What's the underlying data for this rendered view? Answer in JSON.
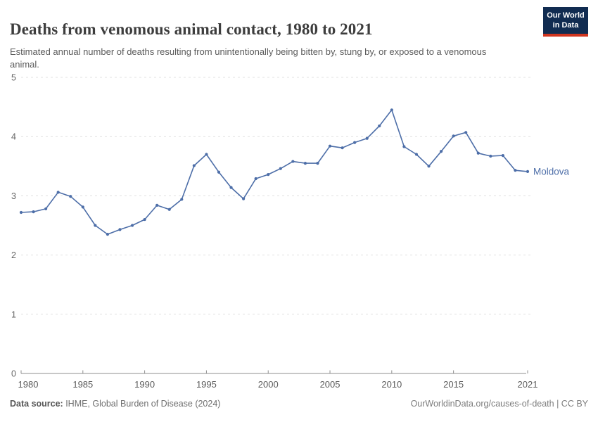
{
  "header": {
    "title": "Deaths from venomous animal contact, 1980 to 2021",
    "subtitle": "Estimated annual number of deaths resulting from unintentionally being bitten by, stung by, or exposed to a venomous animal.",
    "logo": {
      "line1": "Our World",
      "line2": "in Data"
    }
  },
  "footer": {
    "source_label": "Data source:",
    "source_value": " IHME, Global Burden of Disease (2024)",
    "credit": "OurWorldinData.org/causes-of-death | CC BY"
  },
  "colors": {
    "line": "#4d6ea8",
    "grid": "#e0e0e0",
    "axis": "#8f8f8f",
    "tick_label": "#666666",
    "logo_bg": "#112c51",
    "logo_accent": "#d0351f"
  },
  "chart_data": {
    "type": "line",
    "title": "Deaths from venomous animal contact, 1980 to 2021",
    "xlabel": "",
    "ylabel": "",
    "ylim": [
      0,
      5
    ],
    "yticks": [
      0,
      1,
      2,
      3,
      4,
      5
    ],
    "xticks": [
      1980,
      1985,
      1990,
      1995,
      2000,
      2005,
      2010,
      2015,
      2021
    ],
    "grid": "horizontal-dashed",
    "legend_position": "end-of-line",
    "x": [
      1980,
      1981,
      1982,
      1983,
      1984,
      1985,
      1986,
      1987,
      1988,
      1989,
      1990,
      1991,
      1992,
      1993,
      1994,
      1995,
      1996,
      1997,
      1998,
      1999,
      2000,
      2001,
      2002,
      2003,
      2004,
      2005,
      2006,
      2007,
      2008,
      2009,
      2010,
      2011,
      2012,
      2013,
      2014,
      2015,
      2016,
      2017,
      2018,
      2019,
      2020,
      2021
    ],
    "series": [
      {
        "name": "Moldova",
        "color": "#4d6ea8",
        "values": [
          2.72,
          2.73,
          2.78,
          3.06,
          2.99,
          2.81,
          2.5,
          2.35,
          2.43,
          2.5,
          2.6,
          2.84,
          2.77,
          2.94,
          3.51,
          3.7,
          3.4,
          3.14,
          2.95,
          3.29,
          3.36,
          3.46,
          3.58,
          3.55,
          3.55,
          3.84,
          3.81,
          3.9,
          3.97,
          4.18,
          4.45,
          3.83,
          3.7,
          3.5,
          3.75,
          4.01,
          4.07,
          3.72,
          3.67,
          3.68,
          3.43,
          3.41
        ]
      }
    ]
  }
}
